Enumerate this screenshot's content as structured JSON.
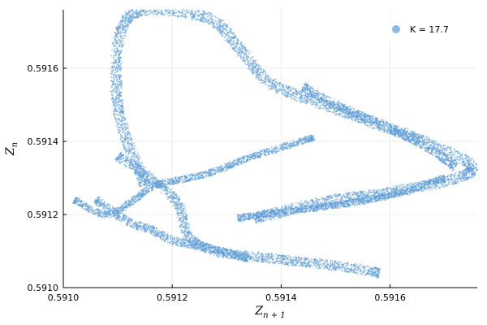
{
  "chart_data": {
    "type": "scatter",
    "title": "",
    "xlabel": "Z",
    "xlabel_sub": "n + 1",
    "ylabel": "Z",
    "ylabel_sub": "n",
    "xlim": [
      0.591,
      0.59176
    ],
    "ylim": [
      0.591,
      0.59176
    ],
    "xticks": [
      0.591,
      0.5912,
      0.5914,
      0.5916
    ],
    "yticks": [
      0.591,
      0.5912,
      0.5914,
      0.5916
    ],
    "xtick_labels": [
      "0.5910",
      "0.5912",
      "0.5914",
      "0.5916"
    ],
    "ytick_labels": [
      "0.5910",
      "0.5912",
      "0.5914",
      "0.5916"
    ],
    "grid": true,
    "legend": {
      "position": "top-right",
      "label": "K = 17.7"
    },
    "series": [
      {
        "name": "K = 17.7",
        "color": "#5b9bd5",
        "bands": [
          {
            "path": [
              [
                0.59115,
                0.59128
              ],
              [
                0.5911,
                0.5915
              ],
              [
                0.59112,
                0.59174
              ],
              [
                0.59126,
                0.59174
              ],
              [
                0.59132,
                0.59166
              ],
              [
                0.59138,
                0.59156
              ],
              [
                0.59148,
                0.5915
              ],
              [
                0.59166,
                0.5914
              ],
              [
                0.59175,
                0.59132
              ],
              [
                0.5916,
                0.59126
              ],
              [
                0.5915,
                0.59124
              ],
              [
                0.59135,
                0.59119
              ]
            ],
            "width": 3e-05
          },
          {
            "path": [
              [
                0.59144,
                0.59155
              ],
              [
                0.5915,
                0.5915
              ],
              [
                0.59165,
                0.5914
              ],
              [
                0.59172,
                0.59133
              ]
            ],
            "width": 2.4e-05
          },
          {
            "path": [
              [
                0.59102,
                0.59124
              ],
              [
                0.59108,
                0.5912
              ],
              [
                0.59113,
                0.59124
              ],
              [
                0.59117,
                0.59128
              ],
              [
                0.59126,
                0.59131
              ],
              [
                0.59135,
                0.59136
              ],
              [
                0.59146,
                0.59141
              ]
            ],
            "width": 1.8e-05
          },
          {
            "path": [
              [
                0.5911,
                0.59136
              ],
              [
                0.59116,
                0.5913
              ],
              [
                0.59121,
                0.59123
              ],
              [
                0.59123,
                0.59114
              ],
              [
                0.59128,
                0.5911
              ],
              [
                0.59138,
                0.59108
              ],
              [
                0.5915,
                0.59106
              ],
              [
                0.59158,
                0.59104
              ]
            ],
            "width": 2.6e-05
          },
          {
            "path": [
              [
                0.59106,
                0.59124
              ],
              [
                0.59112,
                0.59118
              ],
              [
                0.59116,
                0.59116
              ],
              [
                0.5912,
                0.59113
              ],
              [
                0.59126,
                0.59111
              ],
              [
                0.59134,
                0.59108
              ]
            ],
            "width": 2.2e-05
          },
          {
            "path": [
              [
                0.59132,
                0.59119
              ],
              [
                0.59142,
                0.59121
              ],
              [
                0.59152,
                0.59123
              ],
              [
                0.59162,
                0.59126
              ],
              [
                0.5917,
                0.5913
              ]
            ],
            "width": 1.8e-05
          }
        ]
      }
    ]
  }
}
